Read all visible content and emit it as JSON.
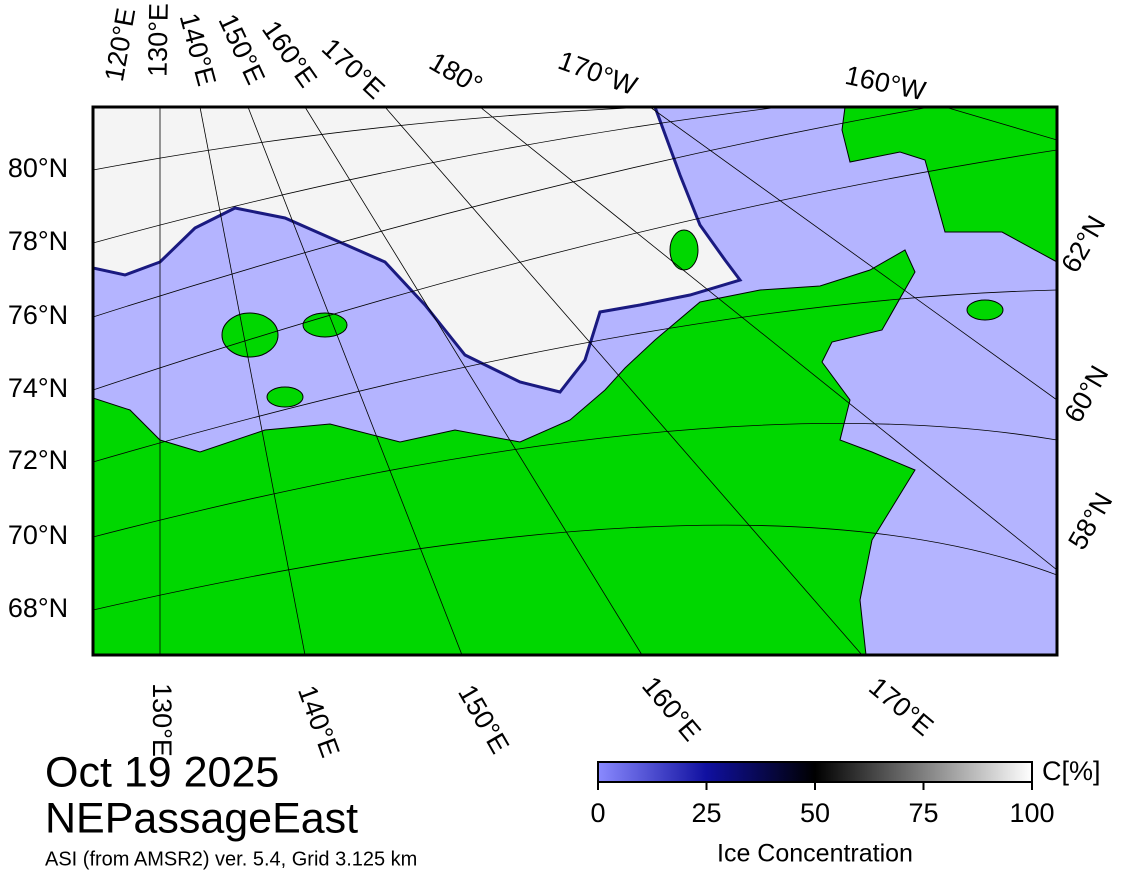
{
  "map": {
    "lon_labels_top": [
      "120°E",
      "130°E",
      "140°E",
      "150°E",
      "160°E",
      "170°E",
      "180°",
      "170°W",
      "160°W"
    ],
    "lat_labels_left": [
      "80°N",
      "78°N",
      "76°N",
      "74°N",
      "72°N",
      "70°N",
      "68°N"
    ],
    "lat_labels_right": [
      "62°N",
      "60°N",
      "58°N"
    ],
    "lon_labels_bottom": [
      "130°E",
      "140°E",
      "150°E",
      "160°E",
      "170°E"
    ]
  },
  "date": "Oct 19 2025",
  "region": "NEPassageEast",
  "source": "ASI (from AMSR2) ver. 5.4,  Grid 3.125 km",
  "colorbar": {
    "ticks": [
      0,
      25,
      50,
      75,
      100
    ],
    "unit": "C[%]",
    "label": "Ice Concentration"
  }
}
